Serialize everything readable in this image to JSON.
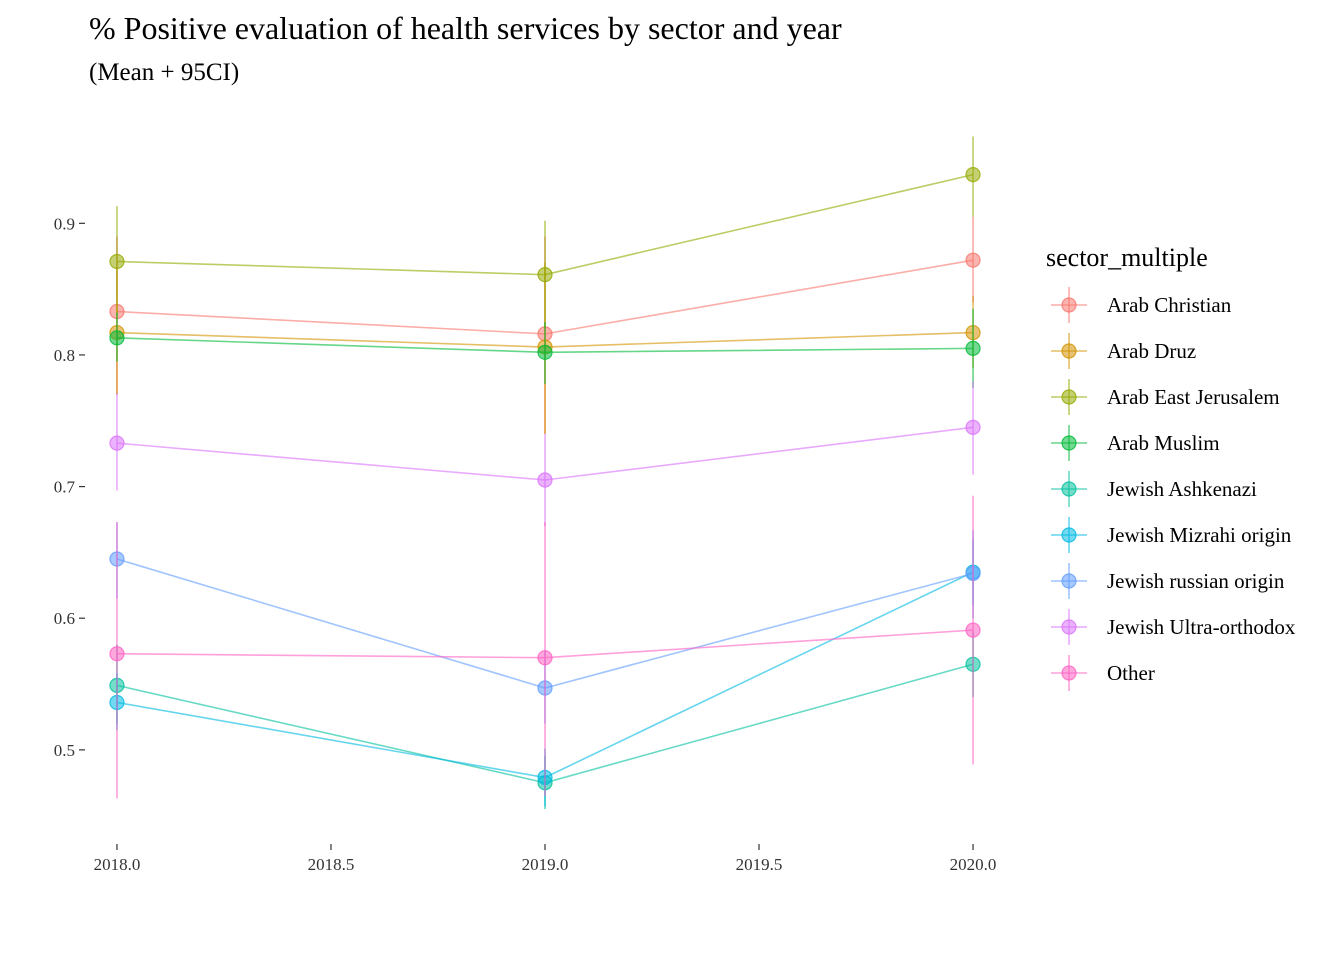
{
  "chart_data": {
    "type": "line",
    "title": "% Positive evaluation of health services by sector and year",
    "subtitle": "(Mean + 95CI)",
    "xlabel": "",
    "ylabel": "",
    "x": [
      2018,
      2019,
      2020
    ],
    "xlim": [
      2017.93,
      2020.07
    ],
    "ylim": [
      0.43,
      0.98
    ],
    "x_ticks": [
      2018.0,
      2018.5,
      2019.0,
      2019.5,
      2020.0
    ],
    "x_tick_labels": [
      "2018.0",
      "2018.5",
      "2019.0",
      "2019.5",
      "2020.0"
    ],
    "y_ticks": [
      0.5,
      0.6,
      0.7,
      0.8,
      0.9
    ],
    "y_tick_labels": [
      "0.5",
      "0.6",
      "0.7",
      "0.8",
      "0.9"
    ],
    "grid": false,
    "legend_title": "sector_multiple",
    "legend_position": "right",
    "series": [
      {
        "name": "Arab Christian",
        "color": "#F8766D",
        "values": [
          0.833,
          0.816,
          0.872
        ],
        "lower": [
          0.77,
          0.74,
          0.84
        ],
        "upper": [
          0.89,
          0.89,
          0.905
        ]
      },
      {
        "name": "Arab Druz",
        "color": "#D39200",
        "values": [
          0.817,
          0.806,
          0.817
        ],
        "lower": [
          0.77,
          0.74,
          0.79
        ],
        "upper": [
          0.865,
          0.87,
          0.845
        ]
      },
      {
        "name": "Arab East Jerusalem",
        "color": "#93AA00",
        "values": [
          0.871,
          0.861,
          0.937
        ],
        "lower": [
          0.83,
          0.82,
          0.905
        ],
        "upper": [
          0.913,
          0.902,
          0.966
        ]
      },
      {
        "name": "Arab Muslim",
        "color": "#00BA38",
        "values": [
          0.813,
          0.802,
          0.805
        ],
        "lower": [
          0.795,
          0.778,
          0.775
        ],
        "upper": [
          0.832,
          0.825,
          0.835
        ]
      },
      {
        "name": "Jewish Ashkenazi",
        "color": "#00C19F",
        "values": [
          0.549,
          0.475,
          0.565
        ],
        "lower": [
          0.52,
          0.455,
          0.54
        ],
        "upper": [
          0.58,
          0.495,
          0.59
        ]
      },
      {
        "name": "Jewish Mizrahi origin",
        "color": "#00B9E3",
        "values": [
          0.536,
          0.479,
          0.635
        ],
        "lower": [
          0.515,
          0.457,
          0.61
        ],
        "upper": [
          0.558,
          0.501,
          0.66
        ]
      },
      {
        "name": "Jewish russian origin",
        "color": "#619CFF",
        "values": [
          0.645,
          0.547,
          0.634
        ],
        "lower": [
          0.615,
          0.52,
          0.6
        ],
        "upper": [
          0.673,
          0.575,
          0.667
        ]
      },
      {
        "name": "Jewish Ultra-orthodox",
        "color": "#DB72FB",
        "values": [
          0.733,
          0.705,
          0.745
        ],
        "lower": [
          0.697,
          0.67,
          0.709
        ],
        "upper": [
          0.771,
          0.74,
          0.78
        ]
      },
      {
        "name": "Other",
        "color": "#FF61C3",
        "values": [
          0.573,
          0.57,
          0.591
        ],
        "lower": [
          0.463,
          0.465,
          0.489
        ],
        "upper": [
          0.673,
          0.673,
          0.693
        ]
      }
    ]
  }
}
